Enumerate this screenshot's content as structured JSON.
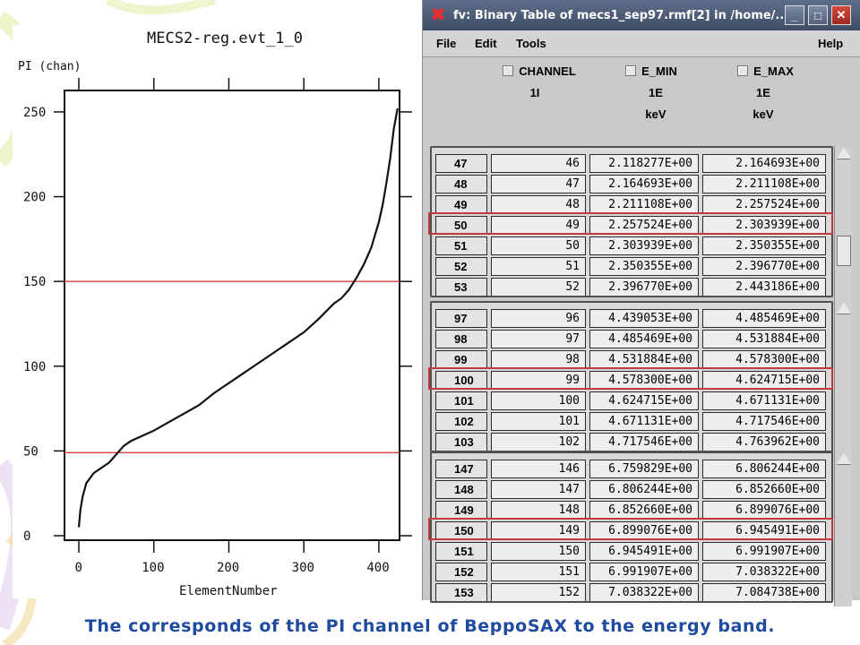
{
  "plot": {
    "title": "MECS2-reg.evt_1_0",
    "ylabel": "PI (chan)",
    "xlabel": "ElementNumber",
    "chart_data": {
      "type": "line",
      "title": "MECS2-reg.evt_1_0",
      "xlabel": "ElementNumber",
      "ylabel": "PI (chan)",
      "xlim": [
        0,
        430
      ],
      "ylim": [
        0,
        260
      ],
      "x_ticks": [
        "0",
        "100",
        "200",
        "300",
        "400"
      ],
      "y_ticks": [
        "0",
        "50",
        "100",
        "150",
        "200",
        "250"
      ],
      "x": [
        0,
        2,
        5,
        10,
        20,
        30,
        40,
        50,
        60,
        70,
        80,
        100,
        120,
        140,
        160,
        180,
        200,
        220,
        240,
        260,
        280,
        300,
        320,
        340,
        350,
        360,
        370,
        380,
        390,
        400,
        405,
        410,
        415,
        420,
        425
      ],
      "y": [
        5,
        15,
        23,
        31,
        37,
        40,
        43,
        48,
        53,
        56,
        58,
        62,
        67,
        72,
        77,
        84,
        90,
        96,
        102,
        108,
        114,
        120,
        128,
        137,
        140,
        145,
        152,
        160,
        170,
        185,
        195,
        208,
        222,
        240,
        252
      ],
      "hlines": [
        {
          "y": 150,
          "color": "#cc2a2a"
        },
        {
          "y": 49,
          "color": "#cc2a2a"
        }
      ],
      "grid": false
    }
  },
  "window": {
    "title": "fv: Binary Table of mecs1_sep97.rmf[2] in /home/...",
    "close_glyph": "✖",
    "minimize_glyph": "_",
    "maximize_glyph": "□",
    "close_btn_glyph": "✕",
    "menu": {
      "file": "File",
      "edit": "Edit",
      "tools": "Tools",
      "help": "Help"
    },
    "columns": [
      {
        "name": "CHANNEL",
        "format": "1I",
        "unit": ""
      },
      {
        "name": "E_MIN",
        "format": "1E",
        "unit": "keV"
      },
      {
        "name": "E_MAX",
        "format": "1E",
        "unit": "keV"
      }
    ],
    "sections": [
      {
        "rows": [
          {
            "n": "47",
            "channel": "46",
            "emin": "2.118277E+00",
            "emax": "2.164693E+00"
          },
          {
            "n": "48",
            "channel": "47",
            "emin": "2.164693E+00",
            "emax": "2.211108E+00"
          },
          {
            "n": "49",
            "channel": "48",
            "emin": "2.211108E+00",
            "emax": "2.257524E+00"
          },
          {
            "n": "50",
            "channel": "49",
            "emin": "2.257524E+00",
            "emax": "2.303939E+00"
          },
          {
            "n": "51",
            "channel": "50",
            "emin": "2.303939E+00",
            "emax": "2.350355E+00"
          },
          {
            "n": "52",
            "channel": "51",
            "emin": "2.350355E+00",
            "emax": "2.396770E+00"
          },
          {
            "n": "53",
            "channel": "52",
            "emin": "2.396770E+00",
            "emax": "2.443186E+00"
          }
        ],
        "highlight_row": 3
      },
      {
        "rows": [
          {
            "n": "97",
            "channel": "96",
            "emin": "4.439053E+00",
            "emax": "4.485469E+00"
          },
          {
            "n": "98",
            "channel": "97",
            "emin": "4.485469E+00",
            "emax": "4.531884E+00"
          },
          {
            "n": "99",
            "channel": "98",
            "emin": "4.531884E+00",
            "emax": "4.578300E+00"
          },
          {
            "n": "100",
            "channel": "99",
            "emin": "4.578300E+00",
            "emax": "4.624715E+00"
          },
          {
            "n": "101",
            "channel": "100",
            "emin": "4.624715E+00",
            "emax": "4.671131E+00"
          },
          {
            "n": "102",
            "channel": "101",
            "emin": "4.671131E+00",
            "emax": "4.717546E+00"
          },
          {
            "n": "103",
            "channel": "102",
            "emin": "4.717546E+00",
            "emax": "4.763962E+00"
          }
        ],
        "highlight_row": 3
      },
      {
        "rows": [
          {
            "n": "147",
            "channel": "146",
            "emin": "6.759829E+00",
            "emax": "6.806244E+00"
          },
          {
            "n": "148",
            "channel": "147",
            "emin": "6.806244E+00",
            "emax": "6.852660E+00"
          },
          {
            "n": "149",
            "channel": "148",
            "emin": "6.852660E+00",
            "emax": "6.899076E+00"
          },
          {
            "n": "150",
            "channel": "149",
            "emin": "6.899076E+00",
            "emax": "6.945491E+00"
          },
          {
            "n": "151",
            "channel": "150",
            "emin": "6.945491E+00",
            "emax": "6.991907E+00"
          },
          {
            "n": "152",
            "channel": "151",
            "emin": "6.991907E+00",
            "emax": "7.038322E+00"
          },
          {
            "n": "153",
            "channel": "152",
            "emin": "7.038322E+00",
            "emax": "7.084738E+00"
          }
        ],
        "highlight_row": 3
      }
    ]
  },
  "caption": "The corresponds of the PI channel of BeppoSAX to the energy band.",
  "colors": {
    "caption": "#1e4aa0",
    "highlight": "#c23a3a",
    "reference_line": "#cc2a2a",
    "titlebar": "#4a5a76"
  }
}
